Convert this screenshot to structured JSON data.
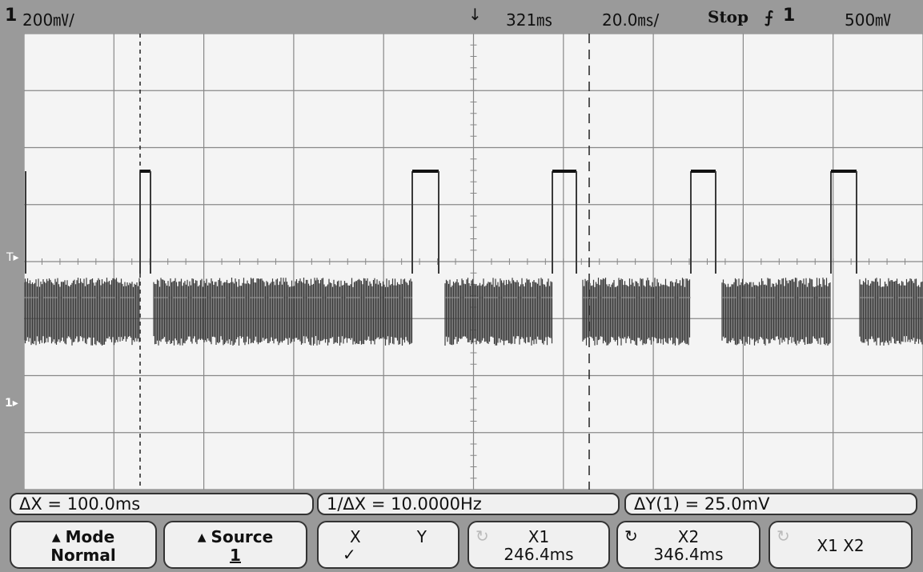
{
  "top": {
    "channel_number": "1",
    "channel_scale": "200㎷/",
    "trigger_marker": "↓",
    "delay": "321㎳",
    "timebase": "20.0㎳/",
    "run_state": "Stop",
    "trigger_edge": "⨍",
    "trigger_source": "1",
    "trigger_level": "500㎷"
  },
  "markers": {
    "trigger_level": "T▸",
    "ground": "1▸"
  },
  "readouts": {
    "delta_x": "ΔX = 100.0ms",
    "inverse_delta_x": "1/ΔX = 10.0000Hz",
    "delta_y": "ΔY(1) = 25.0mV"
  },
  "softkeys": {
    "mode_title": "Mode",
    "mode_value": "Normal",
    "source_title": "Source",
    "source_value": "1",
    "xy_x": "X",
    "xy_y": "Y",
    "xy_check": "✓",
    "x1_title": "X1",
    "x1_value": "246.4ms",
    "x2_title": "X2",
    "x2_value": "346.4ms",
    "x1x2_label": "X1 X2"
  },
  "trace": {
    "pulse_count": 6,
    "cursor_x1_ms": 246.4,
    "cursor_x2_ms": 346.4
  },
  "colors": {
    "screen_bg": "#f4f4f4",
    "grid": "#888888",
    "trace": "#3a3a3a"
  }
}
